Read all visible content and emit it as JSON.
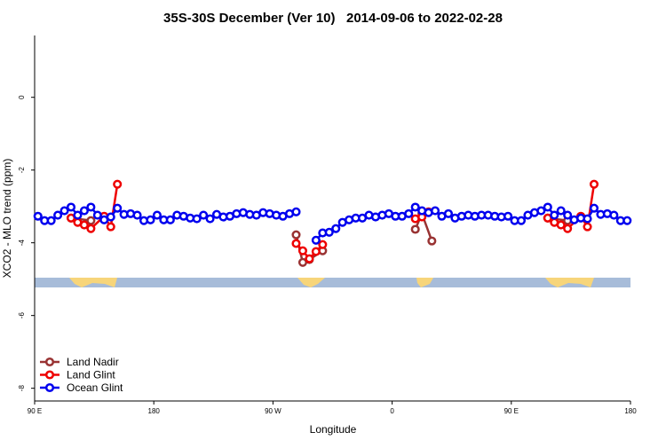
{
  "chart_data": {
    "type": "line",
    "title": "35S-30S December (Ver 10)   2014-09-06 to 2022-02-28",
    "xlabel": "Longitude",
    "ylabel": "XCO2 - MLO trend (ppm)",
    "xlim": [
      90,
      540
    ],
    "ylim": [
      -8.35,
      1.7
    ],
    "xticks": [
      {
        "value": 90,
        "label": "90 E"
      },
      180,
      {
        "value": 270,
        "label": "90 W"
      },
      {
        "value": 360,
        "label": "0"
      },
      {
        "value": 450,
        "label": "90 E"
      },
      {
        "value": 540,
        "label": "180"
      }
    ],
    "yticks": [
      0,
      -2,
      -4,
      -6,
      -8
    ],
    "legend": "lower left",
    "series": [
      {
        "name": "Ocean Glint",
        "color": "#0000ee",
        "x": [
          92.5,
          97.5,
          102.5,
          107.5,
          112.5,
          117.5,
          122.5,
          127.5,
          132.5,
          137.5,
          142.5,
          147.5,
          152.5,
          157.5,
          162.5,
          167.5,
          172.5,
          177.5,
          182.5,
          187.5,
          192.5,
          197.5,
          202.5,
          207.5,
          212.5,
          217.5,
          222.5,
          227.5,
          232.5,
          237.5,
          242.5,
          247.5,
          252.5,
          257.5,
          262.5,
          267.5,
          272.5,
          277.5,
          282.5,
          287.5,
          292.5,
          297.5,
          302.5,
          307.5,
          312.5,
          317.5,
          322.5,
          327.5,
          332.5,
          337.5,
          342.5,
          347.5,
          352.5,
          357.5,
          362.5,
          367.5,
          372.5,
          377.5,
          382.5,
          387.5,
          392.5,
          397.5,
          402.5,
          407.5,
          412.5,
          417.5,
          422.5,
          427.5,
          432.5,
          437.5,
          442.5,
          447.5,
          452.5,
          457.5,
          462.5,
          467.5,
          472.5,
          477.5,
          482.5,
          487.5,
          492.5,
          497.5,
          502.5,
          507.5,
          512.5,
          517.5,
          522.5,
          527.5,
          532.5,
          537.5
        ],
        "values": [
          -3.27,
          -3.39,
          -3.39,
          -3.24,
          -3.12,
          -3.02,
          -3.24,
          -3.12,
          -3.02,
          -3.24,
          -3.37,
          -3.29,
          -3.05,
          -3.22,
          -3.2,
          -3.24,
          -3.39,
          -3.37,
          -3.24,
          -3.37,
          -3.37,
          -3.24,
          -3.27,
          -3.32,
          -3.34,
          -3.24,
          -3.34,
          -3.22,
          -3.29,
          -3.27,
          -3.2,
          -3.17,
          -3.22,
          -3.24,
          -3.17,
          -3.2,
          -3.24,
          -3.27,
          -3.2,
          -3.15,
          null,
          null,
          -3.93,
          -3.73,
          -3.71,
          -3.61,
          -3.44,
          -3.37,
          -3.32,
          -3.32,
          -3.24,
          -3.29,
          -3.24,
          -3.2,
          -3.27,
          -3.27,
          -3.2,
          -3.02,
          -3.12,
          -3.17,
          -3.12,
          -3.27,
          -3.2,
          -3.32,
          -3.27,
          -3.24,
          -3.27,
          -3.24,
          -3.24,
          -3.27,
          -3.29,
          -3.27,
          -3.39,
          -3.39,
          -3.24,
          -3.17,
          -3.12,
          -3.02,
          -3.24,
          -3.12,
          -3.24,
          -3.37,
          -3.32,
          -3.34,
          -3.05,
          -3.22,
          -3.2,
          -3.24,
          -3.39,
          -3.39
        ]
      },
      {
        "name": "Land Glint",
        "color": "#ee0000",
        "x": [
          117.5,
          122.5,
          127.5,
          132.5,
          142.5,
          147.5,
          152.5,
          220,
          287.5,
          292.5,
          297.5,
          302.5,
          307.5,
          340,
          377.5,
          382.5,
          387.5,
          430,
          477.5,
          482.5,
          487.5,
          492.5,
          502.5,
          507.5,
          512.5
        ],
        "values": [
          -3.32,
          -3.44,
          -3.51,
          -3.61,
          -3.27,
          -3.56,
          -2.39,
          null,
          -4.02,
          -4.22,
          -4.44,
          -4.24,
          -4.05,
          null,
          -3.34,
          -3.29,
          -3.15,
          null,
          -3.32,
          -3.44,
          -3.51,
          -3.61,
          -3.27,
          -3.56,
          -2.39
        ]
      },
      {
        "name": "Land Nadir",
        "color": "#993333",
        "x": [
          117.5,
          132.5,
          220,
          287.5,
          292.5,
          297.5,
          307.5,
          340,
          377.5,
          382.5,
          390,
          430,
          477.5,
          492.5
        ],
        "values": [
          -3.32,
          -3.39,
          null,
          -3.78,
          -4.54,
          -4.46,
          -4.22,
          null,
          -3.63,
          -3.2,
          -3.95,
          null,
          -3.32,
          -3.39
        ]
      }
    ]
  }
}
